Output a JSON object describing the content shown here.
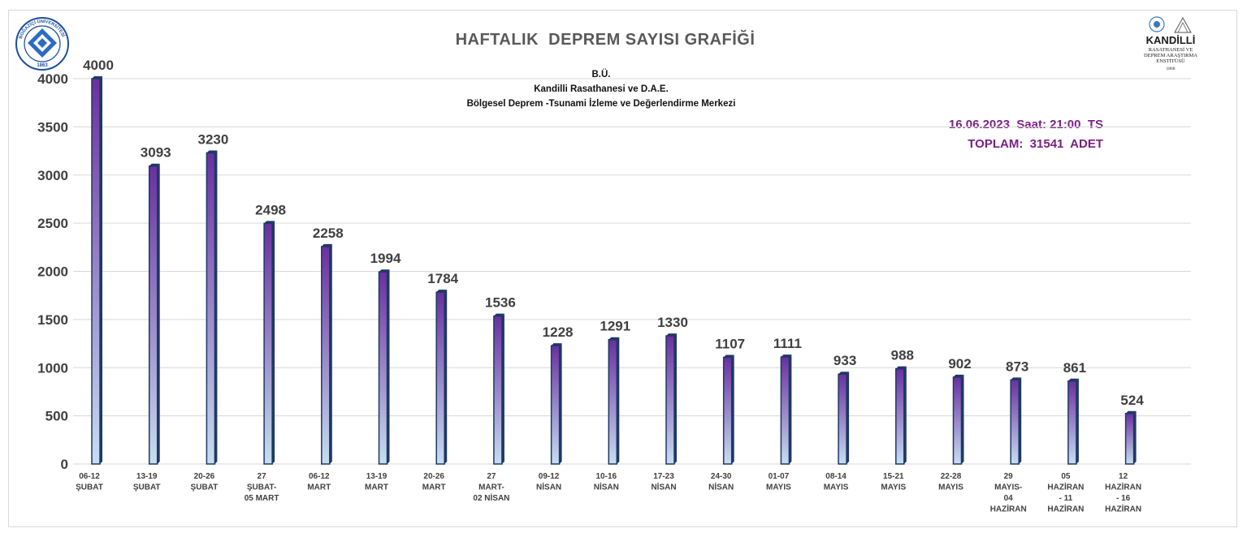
{
  "title": "HAFTALIK  DEPREM SAYISI GRAFİĞİ",
  "subtitle_lines": [
    "B.Ü.",
    "Kandilli Rasathanesi ve D.A.E.",
    "Bölgesel Deprem -Tsunami İzleme ve Değerlendirme Merkezi"
  ],
  "info": {
    "date_line": "16.06.2023  Saat: 21:00  TS",
    "total_line": "TOPLAM:  31541  ADET"
  },
  "logos": {
    "left": {
      "ring_text": "BOĞAZİÇİ ÜNİVERSİTESİ",
      "year": "1863"
    },
    "right": {
      "name": "KANDİLLİ",
      "line2": "RASATHANESİ VE",
      "line3": "DEPREM ARAŞTIRMA",
      "line4": "ENSTİTÜSÜ",
      "year": "1868"
    }
  },
  "colors": {
    "bar_top": "#6a2fa0",
    "bar_bottom": "#c6def1",
    "bar_outline": "#1f3864",
    "grid": "#d9d9d9",
    "info_text": "#7a1f86"
  },
  "chart_data": {
    "type": "bar",
    "ylim": [
      0,
      4000
    ],
    "yticks": [
      0,
      500,
      1000,
      1500,
      2000,
      2500,
      3000,
      3500,
      4000
    ],
    "grid": true,
    "categories": [
      [
        "06-12",
        "ŞUBAT"
      ],
      [
        "13-19",
        "ŞUBAT"
      ],
      [
        "20-26",
        "ŞUBAT"
      ],
      [
        "27",
        "ŞUBAT-",
        "05 MART"
      ],
      [
        "06-12",
        "MART"
      ],
      [
        "13-19",
        "MART"
      ],
      [
        "20-26",
        "MART"
      ],
      [
        "27",
        "MART-",
        "02 NİSAN"
      ],
      [
        "09-12",
        "NİSAN"
      ],
      [
        "10-16",
        "NİSAN"
      ],
      [
        "17-23",
        "NİSAN"
      ],
      [
        "24-30",
        "NİSAN"
      ],
      [
        "01-07",
        "MAYIS"
      ],
      [
        "08-14",
        "MAYIS"
      ],
      [
        "15-21",
        "MAYIS"
      ],
      [
        "22-28",
        "MAYIS"
      ],
      [
        "29",
        "MAYIS-",
        "04",
        "HAZİRAN"
      ],
      [
        "05",
        "HAZİRAN",
        "- 11",
        "HAZİRAN"
      ],
      [
        "12",
        "HAZİRAN",
        "- 16",
        "HAZİRAN"
      ]
    ],
    "values": [
      4000,
      3093,
      3230,
      2498,
      2258,
      1994,
      1784,
      1536,
      1228,
      1291,
      1330,
      1107,
      1111,
      933,
      988,
      902,
      873,
      861,
      524
    ],
    "value_labels": [
      "4000",
      "3093",
      "3230",
      "2498",
      "2258",
      "1994",
      "1784",
      "1536",
      "1228",
      "1291",
      "1330",
      "1107",
      "1111",
      "933",
      "988",
      "902",
      "873",
      "861",
      "524"
    ]
  }
}
